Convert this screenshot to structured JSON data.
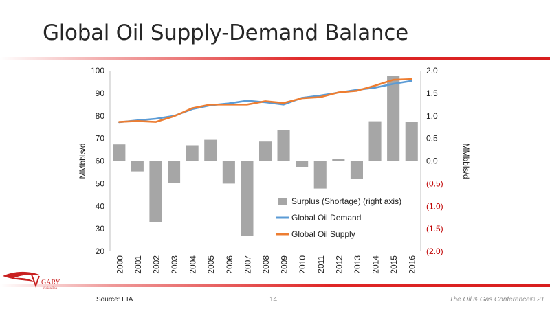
{
  "slide": {
    "title": "Global Oil Supply-Demand Balance",
    "source": "Source: EIA",
    "page_number": "14",
    "conference": "The Oil & Gas Conference® 21",
    "logo_text": "GARY",
    "logo_subtext": "Vision Ink",
    "accent_color": "#d81e1e"
  },
  "chart_data": {
    "type": "bar",
    "x": [
      "2000",
      "2001",
      "2002",
      "2003",
      "2004",
      "2005",
      "2006",
      "2007",
      "2008",
      "2009",
      "2010",
      "2011",
      "2012",
      "2013",
      "2014",
      "2015",
      "2016"
    ],
    "ylabel": "MMbbls/d",
    "y2label": "MMbbls/d",
    "ylim": [
      20,
      100
    ],
    "y2lim": [
      -2.0,
      2.0
    ],
    "yticks": [
      20,
      30,
      40,
      50,
      60,
      70,
      80,
      90,
      100
    ],
    "y2ticks": [
      -2.0,
      -1.5,
      -1.0,
      -0.5,
      0.0,
      0.5,
      1.0,
      1.5,
      2.0
    ],
    "y2tick_labels": [
      "(2.0)",
      "(1.5)",
      "(1.0)",
      "(0.5)",
      "0.0",
      "0.5",
      "1.0",
      "1.5",
      "2.0"
    ],
    "grid": false,
    "legend_position": "bottom-right",
    "series": [
      {
        "name": "Surplus (Shortage) (right axis)",
        "type": "bar",
        "axis": "right",
        "color": "#a6a6a6",
        "values": [
          0.37,
          -0.23,
          -1.35,
          -0.48,
          0.35,
          0.47,
          -0.5,
          -1.65,
          0.43,
          0.68,
          -0.13,
          -0.61,
          0.05,
          -0.4,
          0.88,
          1.88,
          0.86
        ]
      },
      {
        "name": "Global Oil Demand",
        "type": "line",
        "axis": "left",
        "color": "#5b9bd5",
        "values": [
          77.2,
          78.0,
          78.7,
          80.0,
          83.0,
          84.7,
          85.5,
          86.7,
          86.0,
          85.0,
          88.0,
          89.0,
          90.3,
          91.5,
          92.5,
          94.2,
          95.5
        ]
      },
      {
        "name": "Global Oil Supply",
        "type": "line",
        "axis": "left",
        "color": "#ed7d31",
        "values": [
          77.3,
          77.7,
          77.3,
          79.8,
          83.4,
          85.0,
          85.0,
          85.0,
          86.5,
          85.7,
          87.8,
          88.3,
          90.4,
          91.1,
          93.4,
          96.0,
          96.3
        ]
      }
    ]
  }
}
